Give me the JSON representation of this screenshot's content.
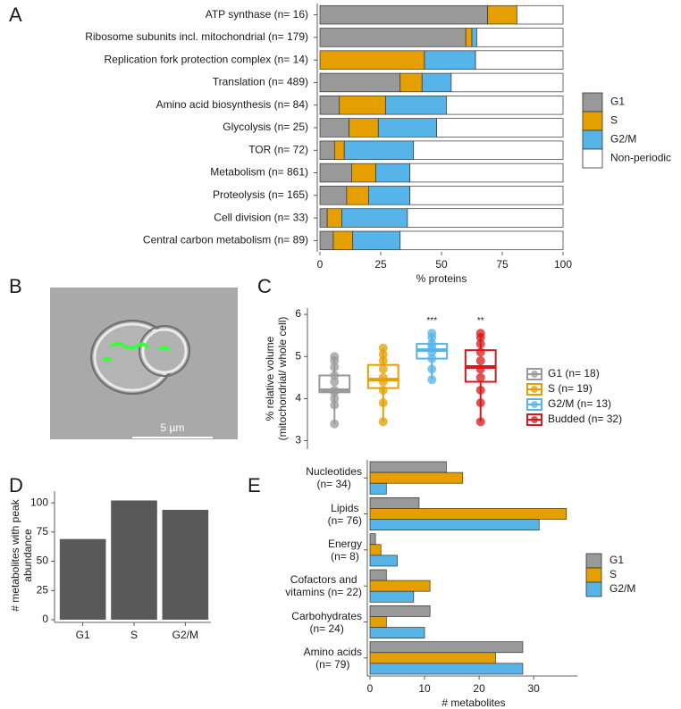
{
  "micrograph": {
    "panel": "B",
    "scale_bar": "5 µm"
  },
  "chart_data": [
    {
      "panel": "A",
      "type": "bar",
      "horizontal": true,
      "stacked": true,
      "categories": [
        "ATP synthase (n= 16)",
        "Ribosome subunits incl. mitochondrial (n= 179)",
        "Replication fork protection complex (n= 14)",
        "Translation (n= 489)",
        "Amino acid biosynthesis (n= 84)",
        "Glycolysis (n= 25)",
        "TOR (n= 72)",
        "Metabolism (n= 861)",
        "Proteolysis (n= 165)",
        "Cell division (n= 33)",
        "Central carbon metabolism (n= 89)"
      ],
      "series": [
        {
          "name": "G1",
          "color": "#999999",
          "values": [
            69,
            60,
            0,
            33,
            8,
            12,
            6,
            13,
            11,
            3,
            5.5
          ]
        },
        {
          "name": "S",
          "color": "#E69F00",
          "values": [
            12,
            2.5,
            43,
            9,
            19,
            12,
            4,
            10,
            9,
            6,
            8
          ]
        },
        {
          "name": "G2/M",
          "color": "#56B4E9",
          "values": [
            0,
            2,
            21,
            12,
            25,
            24,
            28.5,
            14,
            17,
            27,
            19.5
          ]
        },
        {
          "name": "Non-periodic",
          "color": "#FFFFFF",
          "values": [
            19,
            35.5,
            36,
            46,
            48,
            52,
            61.5,
            63,
            63,
            64,
            67
          ]
        }
      ],
      "xlabel": "% proteins",
      "xlim": [
        0,
        100
      ],
      "xticks": [
        0,
        25,
        50,
        75,
        100
      ],
      "legend": "right"
    },
    {
      "panel": "C",
      "type": "box",
      "ylabel": "% relative volume\n(mitochondrial/ whole cell)",
      "ylim": [
        2.8,
        6.15
      ],
      "yticks": [
        3,
        4,
        5,
        6
      ],
      "legend": "right",
      "series": [
        {
          "name": "G1 (n= 18)",
          "color": "#9a9a9a",
          "min": 3.4,
          "q1": 4.15,
          "median": 4.2,
          "q3": 4.55,
          "max": 5.0,
          "points": [
            3.4,
            3.85,
            4.0,
            4.15,
            4.2,
            4.4,
            4.55,
            4.75,
            4.9,
            5.0
          ]
        },
        {
          "name": "S (n= 19)",
          "color": "#E69F00",
          "min": 3.45,
          "q1": 4.25,
          "median": 4.45,
          "q3": 4.8,
          "max": 5.2,
          "points": [
            3.45,
            3.9,
            4.2,
            4.4,
            4.5,
            4.7,
            4.9,
            5.05,
            5.2
          ]
        },
        {
          "name": "G2/M (n= 13)",
          "color": "#56B4E9",
          "min": 4.45,
          "q1": 4.95,
          "median": 5.15,
          "q3": 5.3,
          "max": 5.55,
          "points": [
            4.45,
            4.7,
            4.95,
            5.1,
            5.2,
            5.3,
            5.45,
            5.55
          ],
          "annotation": "***"
        },
        {
          "name": "Budded (n= 32)",
          "color": "#D7191C",
          "min": 3.45,
          "q1": 4.4,
          "median": 4.75,
          "q3": 5.15,
          "max": 5.55,
          "points": [
            3.45,
            3.9,
            4.2,
            4.5,
            4.7,
            4.9,
            5.1,
            5.3,
            5.45,
            5.55
          ],
          "annotation": "**"
        }
      ]
    },
    {
      "panel": "D",
      "type": "bar",
      "categories": [
        "G1",
        "S",
        "G2/M"
      ],
      "values": [
        69,
        102,
        94
      ],
      "color": "#595959",
      "ylabel": "# metabolites with peak\nabundance",
      "ylim": [
        0,
        110
      ],
      "yticks": [
        0,
        25,
        50,
        75,
        100
      ]
    },
    {
      "panel": "E",
      "type": "bar",
      "horizontal": true,
      "stacked": false,
      "categories": [
        "Nucleotides\n(n= 34)",
        "Lipids\n(n= 76)",
        "Energy\n(n= 8)",
        "Cofactors and\nvitamins (n= 22)",
        "Carbohydrates\n(n= 24)",
        "Amino acids\n(n= 79)"
      ],
      "series": [
        {
          "name": "G1",
          "color": "#999999",
          "values": [
            14,
            9,
            1,
            3,
            11,
            28
          ]
        },
        {
          "name": "S",
          "color": "#E69F00",
          "values": [
            17,
            36,
            2,
            11,
            3,
            23
          ]
        },
        {
          "name": "G2/M",
          "color": "#56B4E9",
          "values": [
            3,
            31,
            5,
            8,
            10,
            28
          ]
        }
      ],
      "xlabel": "# metabolites",
      "xlim": [
        0,
        38
      ],
      "xticks": [
        0,
        10,
        20,
        30
      ],
      "legend": "right"
    }
  ]
}
